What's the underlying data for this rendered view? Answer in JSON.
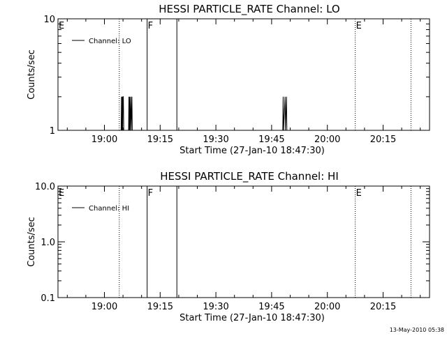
{
  "footer": {
    "timestamp": "13-May-2010 05:38"
  },
  "chart_data": [
    {
      "type": "line",
      "title": "HESSI PARTICLE_RATE Channel: LO",
      "xlabel": "Start Time (27-Jan-10 18:47:30)",
      "ylabel": "Counts/sec",
      "y_scale": "log",
      "ylim": [
        1,
        10
      ],
      "y_ticks": [
        1,
        10
      ],
      "y_tick_labels": [
        "1",
        "10"
      ],
      "xlim": [
        "18:47:30",
        "20:27:30"
      ],
      "x_tick_labels": [
        "19:00",
        "19:15",
        "19:30",
        "19:45",
        "20:00",
        "20:15"
      ],
      "legend": {
        "label": "Channel: LO",
        "placement": "top-left"
      },
      "series": [
        {
          "name": "Channel: LO",
          "points": [
            [
              "19:04:30",
              1
            ],
            [
              "19:04:36",
              2
            ],
            [
              "19:04:42",
              1
            ],
            [
              "19:04:48",
              2
            ],
            [
              "19:04:54",
              1
            ],
            [
              "19:05:00",
              2
            ],
            [
              "19:05:06",
              2
            ],
            [
              "19:05:12",
              1
            ],
            [
              "19:05:18",
              1
            ],
            [
              "19:06:30",
              1
            ],
            [
              "19:06:36",
              2
            ],
            [
              "19:06:42",
              1
            ],
            [
              "19:06:48",
              2
            ],
            [
              "19:06:54",
              1
            ],
            [
              "19:07:06",
              2
            ],
            [
              "19:07:12",
              1
            ],
            [
              "19:07:24",
              2
            ],
            [
              "19:07:30",
              1
            ],
            [
              "19:48:00",
              1
            ],
            [
              "19:48:06",
              2
            ],
            [
              "19:48:12",
              1
            ],
            [
              "19:48:36",
              2
            ],
            [
              "19:48:42",
              1
            ],
            [
              "19:49:00",
              2
            ],
            [
              "19:49:06",
              1
            ]
          ]
        }
      ],
      "markers": [
        {
          "time": "18:47:30",
          "label": "E",
          "style": "solid"
        },
        {
          "time": "19:04:00",
          "label": "",
          "style": "dotted"
        },
        {
          "time": "19:11:30",
          "label": "F",
          "style": "solid"
        },
        {
          "time": "19:19:30",
          "label": "",
          "style": "solid"
        },
        {
          "time": "20:07:30",
          "label": "E",
          "style": "dotted"
        },
        {
          "time": "20:22:30",
          "label": "",
          "style": "dotted"
        }
      ]
    },
    {
      "type": "line",
      "title": "HESSI PARTICLE_RATE Channel: HI",
      "xlabel": "Start Time (27-Jan-10 18:47:30)",
      "ylabel": "Counts/sec",
      "y_scale": "log",
      "ylim": [
        0.1,
        10
      ],
      "y_ticks": [
        0.1,
        1,
        10
      ],
      "y_tick_labels": [
        "0.1",
        "1.0",
        "10.0"
      ],
      "xlim": [
        "18:47:30",
        "20:27:30"
      ],
      "x_tick_labels": [
        "19:00",
        "19:15",
        "19:30",
        "19:45",
        "20:00",
        "20:15"
      ],
      "legend": {
        "label": "Channel: HI",
        "placement": "top-left"
      },
      "series": [
        {
          "name": "Channel: HI",
          "points": []
        }
      ],
      "markers": [
        {
          "time": "18:47:30",
          "label": "E",
          "style": "solid"
        },
        {
          "time": "19:04:00",
          "label": "",
          "style": "dotted"
        },
        {
          "time": "19:11:30",
          "label": "F",
          "style": "solid"
        },
        {
          "time": "19:19:30",
          "label": "",
          "style": "solid"
        },
        {
          "time": "20:07:30",
          "label": "E",
          "style": "dotted"
        },
        {
          "time": "20:22:30",
          "label": "",
          "style": "dotted"
        }
      ]
    }
  ]
}
